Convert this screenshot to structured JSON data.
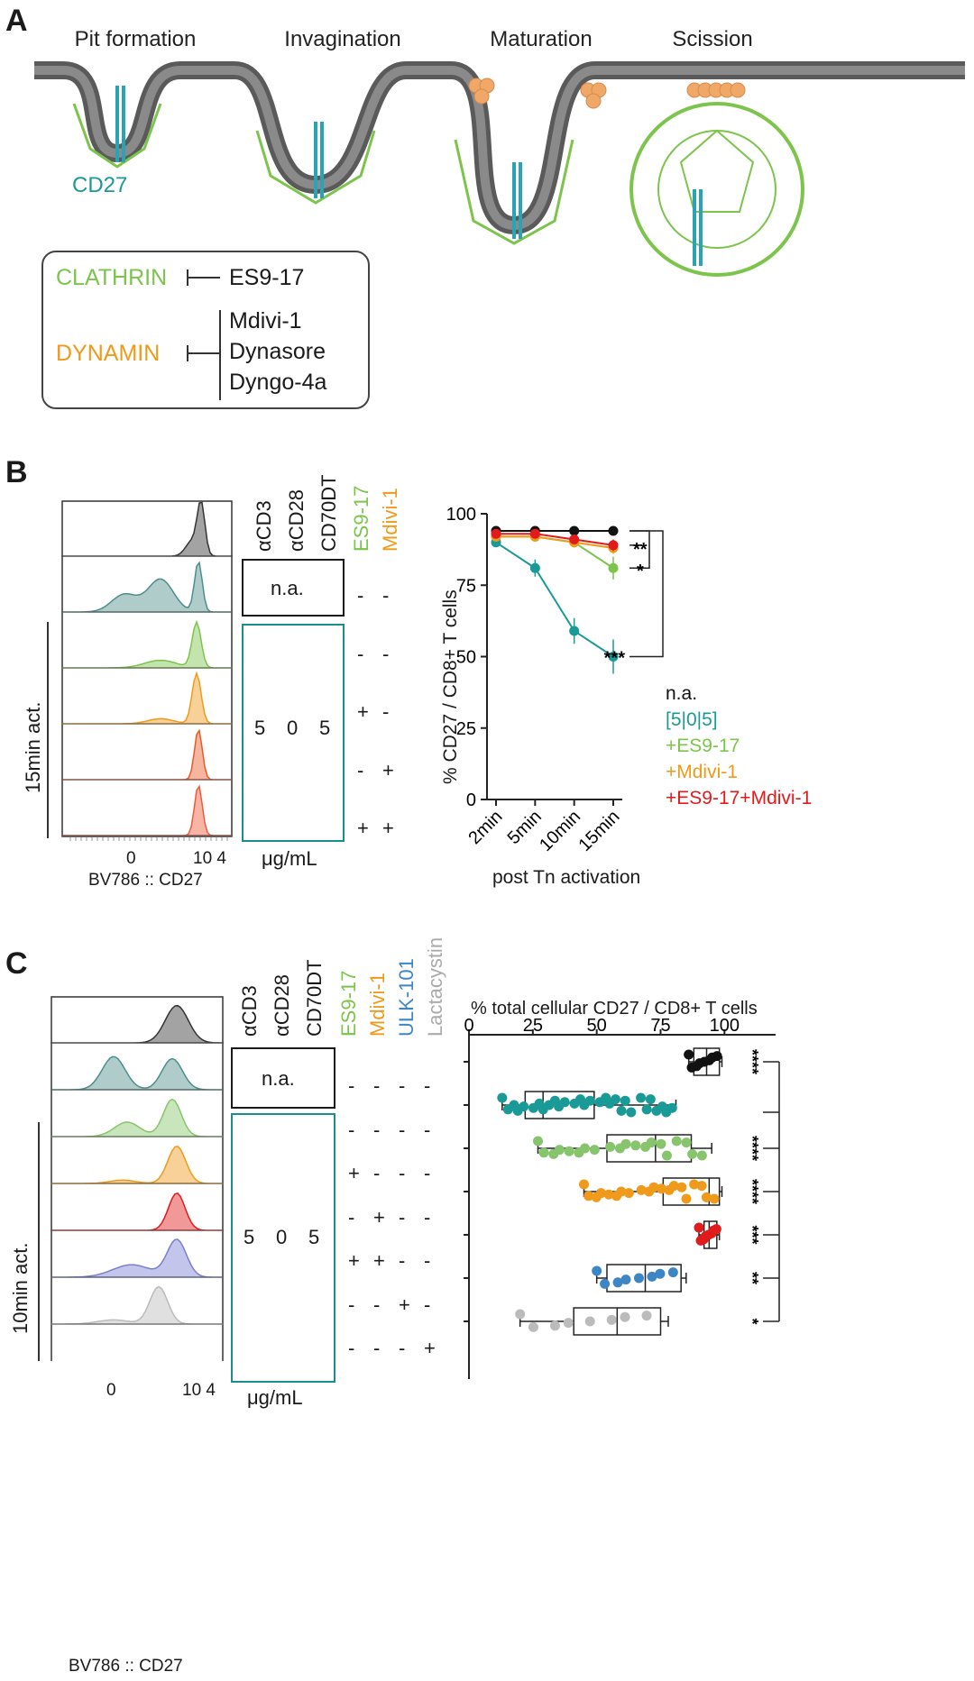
{
  "panelA": {
    "label": "A",
    "stages": [
      "Pit formation",
      "Invagination",
      "Maturation",
      "Scission"
    ],
    "receptor_label": "CD27",
    "legend": {
      "clathrin": "CLATHRIN",
      "clathrin_inhibitors": [
        "ES9-17"
      ],
      "dynamin": "DYNAMIN",
      "dynamin_inhibitors": [
        "Mdivi-1",
        "Dynasore",
        "Dyngo-4a"
      ]
    },
    "colors": {
      "membrane": "#666666",
      "clathrin": "#7cc44b",
      "dynamin": "#f0a868",
      "cd27": "#2aa3b5"
    }
  },
  "panelB": {
    "label": "B",
    "hist_side_label": "15min act.",
    "hist_xlabel": "BV786 :: CD27",
    "hist_ticks": [
      "0",
      "10 4"
    ],
    "columns": [
      "αCD3",
      "αCD28",
      "CD70DT",
      "ES9-17",
      "Mdivi-1"
    ],
    "na_label": "n.a.",
    "conc": [
      "5",
      "0",
      "5"
    ],
    "units": "μg/mL",
    "signs": [
      [
        "-",
        "-"
      ],
      [
        "-",
        "-"
      ],
      [
        "+",
        "-"
      ],
      [
        "-",
        "+"
      ],
      [
        "+",
        "+"
      ]
    ],
    "chart_data": {
      "type": "line",
      "categories": [
        "2min",
        "5min",
        "10min",
        "15min"
      ],
      "ylabel": "% CD27 / CD8+ T cells",
      "xlabel": "post Tn activation",
      "ylim": [
        0,
        100
      ],
      "yticks": [
        0,
        25,
        50,
        75,
        100
      ],
      "series": [
        {
          "name": "n.a.",
          "color": "#111111",
          "values": [
            94,
            94,
            94,
            94
          ],
          "err": [
            0.5,
            0.5,
            0.5,
            0.5
          ]
        },
        {
          "name": "[5|0|5]",
          "color": "#1a9a96",
          "values": [
            90,
            81,
            59,
            50
          ],
          "err": [
            1.5,
            3,
            4.5,
            6
          ]
        },
        {
          "name": "+ES9-17",
          "color": "#7cc44b",
          "values": [
            92,
            92,
            90,
            81
          ],
          "err": [
            1,
            1.5,
            1.5,
            4
          ]
        },
        {
          "name": "+Mdivi-1",
          "color": "#ef9a1a",
          "values": [
            92,
            92,
            90,
            88
          ],
          "err": [
            1,
            1,
            1.5,
            2
          ]
        },
        {
          "name": "+ES9-17+Mdivi-1",
          "color": "#e11b1b",
          "values": [
            93,
            93,
            91,
            89
          ],
          "err": [
            1,
            1,
            1.5,
            2
          ]
        }
      ],
      "significance": [
        "**",
        "*",
        "***"
      ]
    }
  },
  "panelC": {
    "label": "C",
    "hist_side_label": "10min act.",
    "hist_xlabel": "BV786 :: CD27",
    "hist_ticks": [
      "0",
      "10 4"
    ],
    "columns": [
      "αCD3",
      "αCD28",
      "CD70DT",
      "ES9-17",
      "Mdivi-1",
      "ULK-101",
      "Lactacystin"
    ],
    "na_label": "n.a.",
    "conc": [
      "5",
      "0",
      "5"
    ],
    "units": "μg/mL",
    "signs": [
      [
        "-",
        "-",
        "-",
        "-"
      ],
      [
        "-",
        "-",
        "-",
        "-"
      ],
      [
        "+",
        "-",
        "-",
        "-"
      ],
      [
        "-",
        "+",
        "-",
        "-"
      ],
      [
        "+",
        "+",
        "-",
        "-"
      ],
      [
        "-",
        "-",
        "+",
        "-"
      ],
      [
        "-",
        "-",
        "-",
        "+"
      ]
    ],
    "chart_data": {
      "type": "box",
      "title": "% total cellular CD27 / CD8+ T cells",
      "xlim": [
        0,
        120
      ],
      "xticks": [
        0,
        25,
        50,
        75,
        100
      ],
      "groups": [
        {
          "name": "n.a.",
          "color": "#111111",
          "q1": 88,
          "median": 93,
          "q3": 98,
          "min": 86,
          "max": 99
        },
        {
          "name": "[5|0|5]",
          "color": "#1a9a96",
          "q1": 22,
          "median": 29,
          "q3": 49,
          "min": 13,
          "max": 81
        },
        {
          "name": "+ES9-17",
          "color": "#86c56b",
          "q1": 54,
          "median": 73,
          "q3": 87,
          "min": 27,
          "max": 95
        },
        {
          "name": "+Mdivi-1",
          "color": "#ef9a1a",
          "q1": 76,
          "median": 94,
          "q3": 98,
          "min": 45,
          "max": 99
        },
        {
          "name": "+ES9-17+Mdivi-1",
          "color": "#e11b1b",
          "q1": 92,
          "median": 94,
          "q3": 97,
          "min": 90,
          "max": 98
        },
        {
          "name": "ULK-101",
          "color": "#3d86c6",
          "q1": 54,
          "median": 69,
          "q3": 83,
          "min": 50,
          "max": 85
        },
        {
          "name": "Lactacystin",
          "color": "#bbbbbb",
          "q1": 41,
          "median": 58,
          "q3": 75,
          "min": 20,
          "max": 78
        }
      ],
      "significance": [
        "****",
        "****",
        "****",
        "***",
        "**",
        "*"
      ]
    }
  }
}
